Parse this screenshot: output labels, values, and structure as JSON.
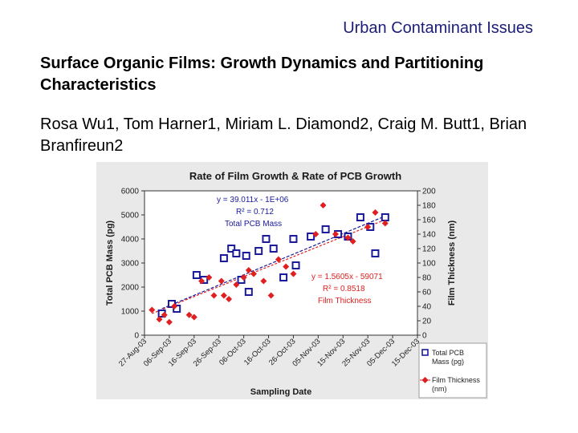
{
  "header": {
    "subtitle": "Urban Contaminant Issues"
  },
  "slide": {
    "title": "Surface Organic Films: Growth Dynamics and Partitioning Characteristics",
    "authors": "Rosa Wu1, Tom Harner1, Miriam L. Diamond2, Craig M. Butt1, Brian Branfireun2"
  },
  "chart_data": {
    "type": "scatter",
    "title": "Rate of Film Growth & Rate of PCB Growth",
    "xlabel": "Sampling Date",
    "ylabel": "Total PCB Mass (pg)",
    "y2label": "Film Thickness (nm)",
    "categories": [
      "27-Aug-03",
      "06-Sep-03",
      "16-Sep-03",
      "26-Sep-03",
      "06-Oct-03",
      "16-Oct-03",
      "26-Oct-03",
      "05-Nov-03",
      "15-Nov-03",
      "25-Nov-03",
      "05-Dec-03",
      "15-Dec-03"
    ],
    "ylim": [
      0,
      6000
    ],
    "yticks": [
      0,
      1000,
      2000,
      3000,
      4000,
      5000,
      6000
    ],
    "y2lim": [
      0,
      200
    ],
    "y2ticks": [
      0,
      20,
      40,
      60,
      80,
      100,
      120,
      140,
      160,
      180,
      200
    ],
    "grid": false,
    "legend_position": "bottom-right",
    "series": [
      {
        "name": "Total PCB Mass (pg)",
        "axis": "left",
        "color": "#1a1a9a",
        "marker": "square",
        "points": [
          {
            "x": "03-Sep-03",
            "y": 900
          },
          {
            "x": "07-Sep-03",
            "y": 1300
          },
          {
            "x": "09-Sep-03",
            "y": 1100
          },
          {
            "x": "17-Sep-03",
            "y": 2500
          },
          {
            "x": "20-Sep-03",
            "y": 2300
          },
          {
            "x": "28-Sep-03",
            "y": 3200
          },
          {
            "x": "01-Oct-03",
            "y": 3600
          },
          {
            "x": "03-Oct-03",
            "y": 3400
          },
          {
            "x": "05-Oct-03",
            "y": 2300
          },
          {
            "x": "08-Oct-03",
            "y": 1800
          },
          {
            "x": "07-Oct-03",
            "y": 3300
          },
          {
            "x": "12-Oct-03",
            "y": 3500
          },
          {
            "x": "15-Oct-03",
            "y": 4000
          },
          {
            "x": "18-Oct-03",
            "y": 3600
          },
          {
            "x": "22-Oct-03",
            "y": 2400
          },
          {
            "x": "26-Oct-03",
            "y": 4000
          },
          {
            "x": "27-Oct-03",
            "y": 2900
          },
          {
            "x": "02-Nov-03",
            "y": 4100
          },
          {
            "x": "08-Nov-03",
            "y": 4400
          },
          {
            "x": "13-Nov-03",
            "y": 4200
          },
          {
            "x": "17-Nov-03",
            "y": 4100
          },
          {
            "x": "22-Nov-03",
            "y": 4900
          },
          {
            "x": "26-Nov-03",
            "y": 4500
          },
          {
            "x": "28-Nov-03",
            "y": 3400
          },
          {
            "x": "02-Dec-03",
            "y": 4900
          }
        ],
        "trendline": {
          "label": "Total PCB Mass",
          "equation": "y = 39.011x - 1E+06",
          "r2": "R² = 0.712",
          "start": 1100,
          "end": 4950
        }
      },
      {
        "name": "Film Thickness (nm)",
        "axis": "right",
        "color": "#e02020",
        "marker": "diamond",
        "points": [
          {
            "x": "30-Aug-03",
            "y": 35
          },
          {
            "x": "02-Sep-03",
            "y": 22
          },
          {
            "x": "04-Sep-03",
            "y": 28
          },
          {
            "x": "06-Sep-03",
            "y": 18
          },
          {
            "x": "08-Sep-03",
            "y": 40
          },
          {
            "x": "14-Sep-03",
            "y": 28
          },
          {
            "x": "16-Sep-03",
            "y": 25
          },
          {
            "x": "19-Sep-03",
            "y": 75
          },
          {
            "x": "22-Sep-03",
            "y": 80
          },
          {
            "x": "24-Sep-03",
            "y": 55
          },
          {
            "x": "27-Sep-03",
            "y": 75
          },
          {
            "x": "28-Sep-03",
            "y": 55
          },
          {
            "x": "30-Sep-03",
            "y": 50
          },
          {
            "x": "03-Oct-03",
            "y": 70
          },
          {
            "x": "06-Oct-03",
            "y": 80
          },
          {
            "x": "08-Oct-03",
            "y": 90
          },
          {
            "x": "10-Oct-03",
            "y": 85
          },
          {
            "x": "14-Oct-03",
            "y": 75
          },
          {
            "x": "17-Oct-03",
            "y": 55
          },
          {
            "x": "20-Oct-03",
            "y": 105
          },
          {
            "x": "23-Oct-03",
            "y": 95
          },
          {
            "x": "26-Oct-03",
            "y": 85
          },
          {
            "x": "04-Nov-03",
            "y": 140
          },
          {
            "x": "07-Nov-03",
            "y": 180
          },
          {
            "x": "12-Nov-03",
            "y": 140
          },
          {
            "x": "17-Nov-03",
            "y": 135
          },
          {
            "x": "19-Nov-03",
            "y": 130
          },
          {
            "x": "25-Nov-03",
            "y": 150
          },
          {
            "x": "28-Nov-03",
            "y": 170
          },
          {
            "x": "02-Dec-03",
            "y": 155
          }
        ],
        "trendline": {
          "label": "Film Thickness",
          "equation": "y = 1.5605x - 59071",
          "r2": "R² = 0.8518",
          "start": 30,
          "end": 160
        }
      }
    ],
    "legend": [
      {
        "label": "Total PCB Mass (pg)",
        "marker": "square",
        "color": "#1a1a9a"
      },
      {
        "label": "Film Thickness (nm)",
        "marker": "diamond",
        "color": "#e02020"
      }
    ]
  }
}
